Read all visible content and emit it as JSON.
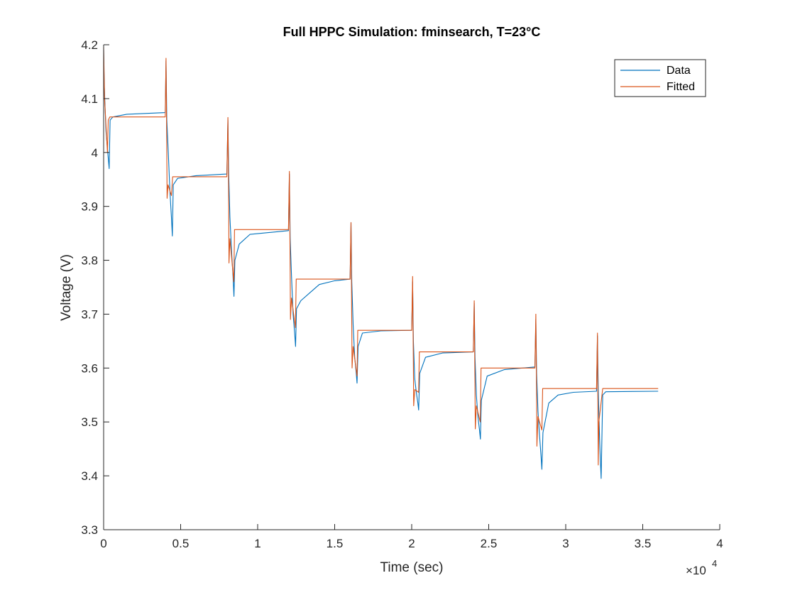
{
  "colors": {
    "data": "#0072BD",
    "fitted": "#D95319",
    "axis": "#262626",
    "background": "#ffffff"
  },
  "chart_data": {
    "type": "line",
    "title": "Full HPPC Simulation: fminsearch, T=23°C",
    "xlabel": "Time (sec)",
    "ylabel": "Voltage (V)",
    "x_exponent_label": "×10",
    "x_exponent_power": "4",
    "xlim": [
      0,
      40000
    ],
    "ylim": [
      3.3,
      4.2
    ],
    "xticks": [
      0,
      5000,
      10000,
      15000,
      20000,
      25000,
      30000,
      35000,
      40000
    ],
    "xtick_labels": [
      "0",
      "0.5",
      "1",
      "1.5",
      "2",
      "2.5",
      "3",
      "3.5",
      "4"
    ],
    "yticks": [
      3.3,
      3.4,
      3.5,
      3.6,
      3.7,
      3.8,
      3.9,
      4.0,
      4.1,
      4.2
    ],
    "ytick_labels": [
      "3.3",
      "3.4",
      "3.5",
      "3.6",
      "3.7",
      "3.8",
      "3.9",
      "4",
      "4.1",
      "4.2"
    ],
    "grid": false,
    "legend_position": "top-right",
    "series": [
      {
        "name": "Data",
        "color": "#0072BD",
        "points": [
          [
            0,
            4.19
          ],
          [
            30,
            4.13
          ],
          [
            150,
            4.04
          ],
          [
            300,
            3.99
          ],
          [
            360,
            3.97
          ],
          [
            420,
            4.06
          ],
          [
            600,
            4.066
          ],
          [
            1500,
            4.071
          ],
          [
            4000,
            4.074
          ],
          [
            4050,
            4.17
          ],
          [
            4100,
            4.06
          ],
          [
            4200,
            4.0
          ],
          [
            4300,
            3.93
          ],
          [
            4400,
            3.88
          ],
          [
            4460,
            3.845
          ],
          [
            4520,
            3.94
          ],
          [
            4800,
            3.952
          ],
          [
            6000,
            3.957
          ],
          [
            8000,
            3.96
          ],
          [
            8070,
            4.06
          ],
          [
            8120,
            3.96
          ],
          [
            8200,
            3.88
          ],
          [
            8300,
            3.82
          ],
          [
            8400,
            3.77
          ],
          [
            8460,
            3.733
          ],
          [
            8520,
            3.8
          ],
          [
            8800,
            3.83
          ],
          [
            9500,
            3.848
          ],
          [
            12000,
            3.855
          ],
          [
            12060,
            3.96
          ],
          [
            12110,
            3.84
          ],
          [
            12200,
            3.77
          ],
          [
            12300,
            3.7
          ],
          [
            12400,
            3.665
          ],
          [
            12460,
            3.64
          ],
          [
            12520,
            3.71
          ],
          [
            12800,
            3.725
          ],
          [
            13400,
            3.74
          ],
          [
            14000,
            3.755
          ],
          [
            15000,
            3.762
          ],
          [
            16000,
            3.765
          ],
          [
            16060,
            3.87
          ],
          [
            16110,
            3.76
          ],
          [
            16200,
            3.68
          ],
          [
            16300,
            3.62
          ],
          [
            16400,
            3.59
          ],
          [
            16450,
            3.572
          ],
          [
            16520,
            3.64
          ],
          [
            16800,
            3.665
          ],
          [
            18000,
            3.669
          ],
          [
            20000,
            3.67
          ],
          [
            20060,
            3.76
          ],
          [
            20110,
            3.65
          ],
          [
            20200,
            3.58
          ],
          [
            20300,
            3.555
          ],
          [
            20400,
            3.535
          ],
          [
            20450,
            3.522
          ],
          [
            20520,
            3.59
          ],
          [
            20900,
            3.62
          ],
          [
            22000,
            3.628
          ],
          [
            24000,
            3.63
          ],
          [
            24060,
            3.72
          ],
          [
            24110,
            3.62
          ],
          [
            24200,
            3.55
          ],
          [
            24300,
            3.51
          ],
          [
            24400,
            3.485
          ],
          [
            24460,
            3.468
          ],
          [
            24520,
            3.54
          ],
          [
            24900,
            3.585
          ],
          [
            26000,
            3.597
          ],
          [
            28000,
            3.602
          ],
          [
            28060,
            3.69
          ],
          [
            28110,
            3.59
          ],
          [
            28200,
            3.52
          ],
          [
            28300,
            3.475
          ],
          [
            28400,
            3.435
          ],
          [
            28450,
            3.412
          ],
          [
            28520,
            3.48
          ],
          [
            28900,
            3.535
          ],
          [
            29500,
            3.55
          ],
          [
            30500,
            3.555
          ],
          [
            32000,
            3.557
          ],
          [
            32060,
            3.66
          ],
          [
            32110,
            3.56
          ],
          [
            32200,
            3.47
          ],
          [
            32250,
            3.43
          ],
          [
            32300,
            3.395
          ],
          [
            32400,
            3.55
          ],
          [
            32600,
            3.556
          ],
          [
            36000,
            3.557
          ]
        ]
      },
      {
        "name": "Fitted",
        "color": "#D95319",
        "points": [
          [
            0,
            4.195
          ],
          [
            60,
            4.1
          ],
          [
            250,
            4.0
          ],
          [
            300,
            4.06
          ],
          [
            400,
            4.066
          ],
          [
            4000,
            4.066
          ],
          [
            4050,
            4.175
          ],
          [
            4100,
            4.0
          ],
          [
            4120,
            3.915
          ],
          [
            4180,
            3.94
          ],
          [
            4400,
            3.92
          ],
          [
            4480,
            3.955
          ],
          [
            8000,
            3.955
          ],
          [
            8070,
            4.065
          ],
          [
            8120,
            3.9
          ],
          [
            8140,
            3.795
          ],
          [
            8200,
            3.84
          ],
          [
            8450,
            3.76
          ],
          [
            8500,
            3.857
          ],
          [
            12000,
            3.857
          ],
          [
            12060,
            3.965
          ],
          [
            12110,
            3.78
          ],
          [
            12130,
            3.69
          ],
          [
            12200,
            3.73
          ],
          [
            12450,
            3.675
          ],
          [
            12500,
            3.765
          ],
          [
            16000,
            3.765
          ],
          [
            16060,
            3.87
          ],
          [
            16110,
            3.68
          ],
          [
            16130,
            3.6
          ],
          [
            16200,
            3.64
          ],
          [
            16450,
            3.585
          ],
          [
            16500,
            3.67
          ],
          [
            20000,
            3.67
          ],
          [
            20060,
            3.77
          ],
          [
            20110,
            3.6
          ],
          [
            20130,
            3.53
          ],
          [
            20200,
            3.56
          ],
          [
            20450,
            3.555
          ],
          [
            20500,
            3.63
          ],
          [
            24000,
            3.63
          ],
          [
            24060,
            3.725
          ],
          [
            24110,
            3.56
          ],
          [
            24130,
            3.487
          ],
          [
            24200,
            3.53
          ],
          [
            24450,
            3.5
          ],
          [
            24500,
            3.6
          ],
          [
            28000,
            3.6
          ],
          [
            28060,
            3.7
          ],
          [
            28110,
            3.54
          ],
          [
            28130,
            3.455
          ],
          [
            28200,
            3.51
          ],
          [
            28450,
            3.485
          ],
          [
            28500,
            3.562
          ],
          [
            32000,
            3.562
          ],
          [
            32060,
            3.665
          ],
          [
            32110,
            3.42
          ],
          [
            32150,
            3.5
          ],
          [
            32400,
            3.562
          ],
          [
            36000,
            3.562
          ]
        ]
      }
    ]
  }
}
